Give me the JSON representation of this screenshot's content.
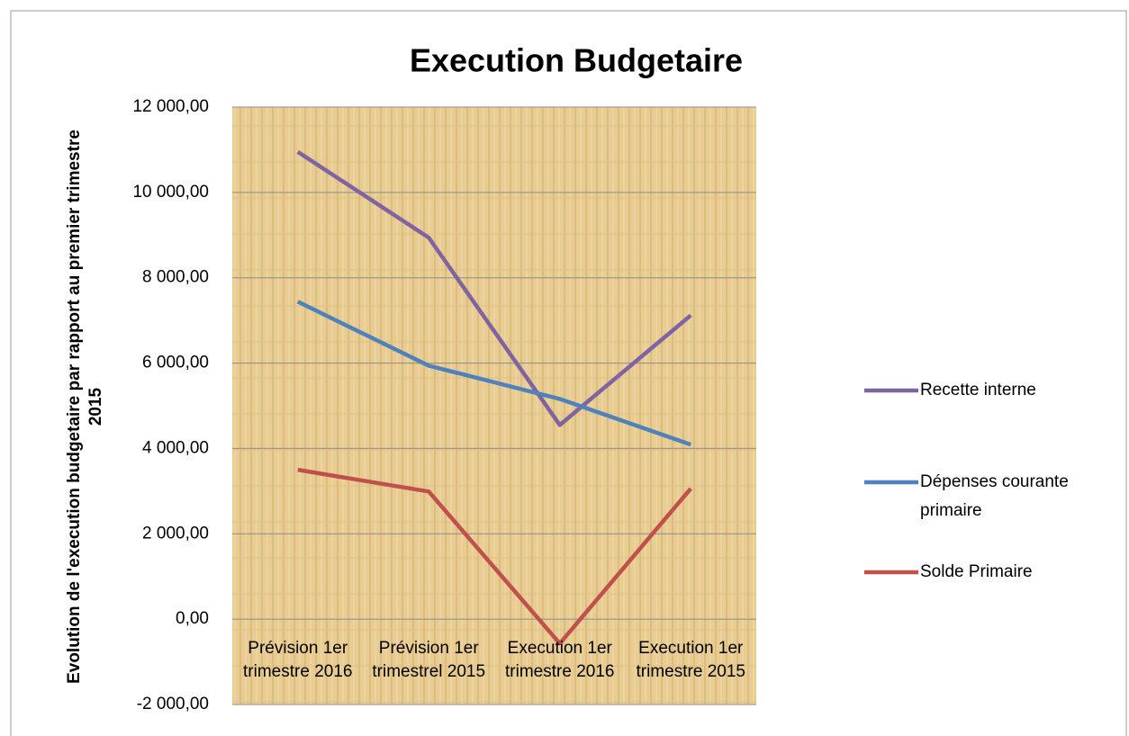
{
  "chart_data": {
    "type": "line",
    "title": "Execution Budgetaire",
    "y_label": "Evolution de l'execution budgetaire par rapport au premier trimestre 2015",
    "categories": [
      "Prévision 1er trimestre 2016",
      "Prévision 1er trimestrel 2015",
      "Execution 1er trimestre 2016",
      "Execution 1er trimestre 2015"
    ],
    "series": [
      {
        "name": "Recette interne",
        "color": "#8064a2",
        "values": [
          10950,
          8940,
          4550,
          7120
        ]
      },
      {
        "name": "Dépenses courante primaire",
        "color": "#4f81bd",
        "values": [
          7440,
          5940,
          5160,
          4090
        ]
      },
      {
        "name": "Solde Primaire",
        "color": "#c0504d",
        "values": [
          3500,
          2990,
          -570,
          3060
        ]
      }
    ],
    "ylim": [
      -2000,
      12000
    ],
    "yticks": [
      {
        "value": -2000,
        "label": "-2 000,00"
      },
      {
        "value": 0,
        "label": "0,00"
      },
      {
        "value": 2000,
        "label": "2 000,00"
      },
      {
        "value": 4000,
        "label": "4 000,00"
      },
      {
        "value": 6000,
        "label": "6 000,00"
      },
      {
        "value": 8000,
        "label": "8 000,00"
      },
      {
        "value": 10000,
        "label": "10 000,00"
      },
      {
        "value": 12000,
        "label": "12 000,00"
      }
    ],
    "grid": true,
    "legend": "right"
  }
}
